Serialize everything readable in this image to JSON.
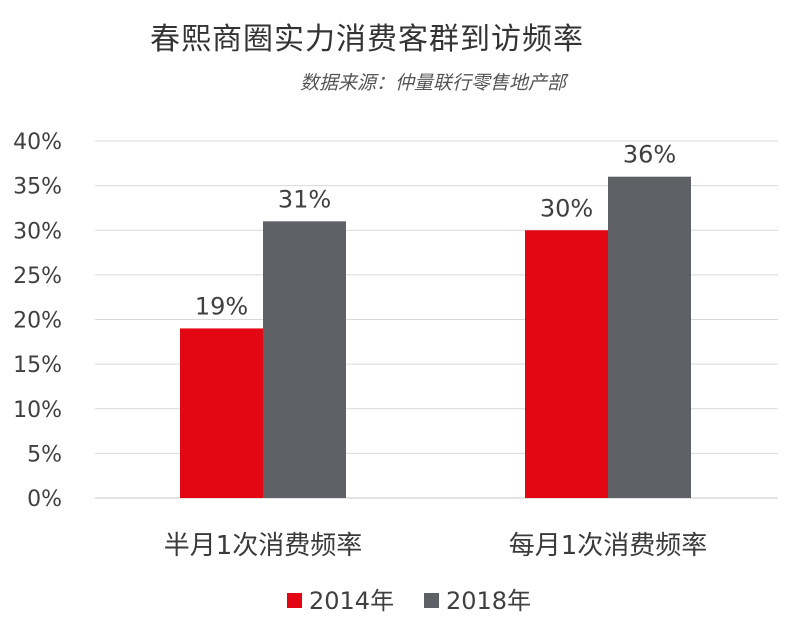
{
  "chart_data": {
    "type": "bar",
    "title": "春熙商圈实力消费客群到访频率",
    "subtitle": "数据来源：仲量联行零售地产部",
    "categories": [
      "半月1次消费频率",
      "每月1次消费频率"
    ],
    "series": [
      {
        "name": "2014年",
        "values": [
          19,
          30
        ],
        "labels": [
          "19%",
          "30%"
        ],
        "color": "#e30613"
      },
      {
        "name": "2018年",
        "values": [
          31,
          36
        ],
        "labels": [
          "31%",
          "36%"
        ],
        "color": "#606166"
      }
    ],
    "yticks": [
      "0%",
      "5%",
      "10%",
      "15%",
      "20%",
      "25%",
      "30%",
      "35%",
      "40%"
    ],
    "ylim": [
      0,
      40
    ],
    "grid": true,
    "legend_position": "bottom"
  }
}
